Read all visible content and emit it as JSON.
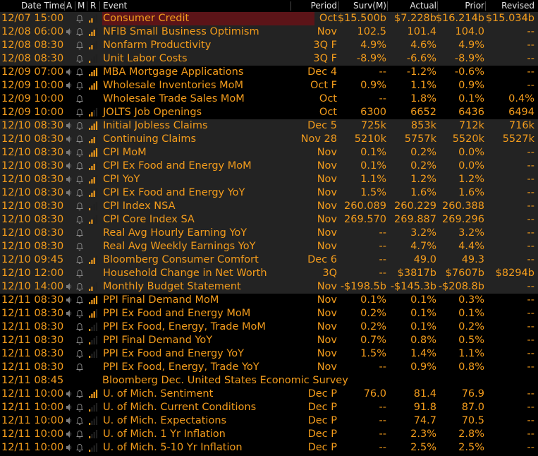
{
  "header": {
    "datetime": "Date Time",
    "a": "A",
    "m": "M",
    "r": "R",
    "event": "Event",
    "period": "Period",
    "surv": "Surv(M)",
    "actual": "Actual",
    "prior": "Prior",
    "revised": "Revised"
  },
  "rows": [
    {
      "dt": "12/07 15:00",
      "ev": "Consumer Credit",
      "per": "Oct",
      "surv": "$15.500b",
      "act": "$7.228b",
      "pri": "$16.214b",
      "rev": "$15.034b",
      "spk": false,
      "bell": true,
      "bars": 2,
      "hl": true
    },
    {
      "dt": "12/08 06:00",
      "ev": "NFIB Small Business Optimism",
      "per": "Nov",
      "surv": "102.5",
      "act": "101.4",
      "pri": "104.0",
      "rev": "--",
      "spk": true,
      "bell": true,
      "bars": 3,
      "shade": true
    },
    {
      "dt": "12/08 08:30",
      "ev": "Nonfarm Productivity",
      "per": "3Q F",
      "surv": "4.9%",
      "act": "4.6%",
      "pri": "4.9%",
      "rev": "--",
      "spk": false,
      "bell": true,
      "bars": 2,
      "shade": true
    },
    {
      "dt": "12/08 08:30",
      "ev": "Unit Labor Costs",
      "per": "3Q F",
      "surv": "-8.9%",
      "act": "-6.6%",
      "pri": "-8.9%",
      "rev": "--",
      "spk": false,
      "bell": true,
      "bars": 1,
      "shade": true
    },
    {
      "dt": "12/09 07:00",
      "ev": "MBA Mortgage Applications",
      "per": "Dec 4",
      "surv": "--",
      "act": "-1.2%",
      "pri": "-0.6%",
      "rev": "--",
      "spk": true,
      "bell": true,
      "bars": 4
    },
    {
      "dt": "12/09 10:00",
      "ev": "Wholesale Inventories MoM",
      "per": "Oct F",
      "surv": "0.9%",
      "act": "1.1%",
      "pri": "0.9%",
      "rev": "--",
      "spk": true,
      "bell": true,
      "bars": 4
    },
    {
      "dt": "12/09 10:00",
      "ev": "Wholesale Trade Sales MoM",
      "per": "Oct",
      "surv": "--",
      "act": "1.8%",
      "pri": "0.1%",
      "rev": "0.4%",
      "spk": false,
      "bell": true,
      "bars": 0
    },
    {
      "dt": "12/09 10:00",
      "ev": "JOLTS Job Openings",
      "per": "Oct",
      "surv": "6300",
      "act": "6652",
      "pri": "6436",
      "rev": "6494",
      "spk": false,
      "bell": true,
      "bars": 2
    },
    {
      "dt": "12/10 08:30",
      "ev": "Initial Jobless Claims",
      "per": "Dec 5",
      "surv": "725k",
      "act": "853k",
      "pri": "712k",
      "rev": "716k",
      "spk": true,
      "bell": true,
      "bars": 4,
      "shade": true
    },
    {
      "dt": "12/10 08:30",
      "ev": "Continuing Claims",
      "per": "Nov 28",
      "surv": "5210k",
      "act": "5757k",
      "pri": "5520k",
      "rev": "5527k",
      "spk": true,
      "bell": true,
      "bars": 3,
      "shade": true
    },
    {
      "dt": "12/10 08:30",
      "ev": "CPI MoM",
      "per": "Nov",
      "surv": "0.1%",
      "act": "0.2%",
      "pri": "0.0%",
      "rev": "--",
      "spk": true,
      "bell": true,
      "bars": 4,
      "shade": true
    },
    {
      "dt": "12/10 08:30",
      "ev": "CPI Ex Food and Energy MoM",
      "per": "Nov",
      "surv": "0.1%",
      "act": "0.2%",
      "pri": "0.0%",
      "rev": "--",
      "spk": true,
      "bell": true,
      "bars": 3,
      "shade": true
    },
    {
      "dt": "12/10 08:30",
      "ev": "CPI YoY",
      "per": "Nov",
      "surv": "1.1%",
      "act": "1.2%",
      "pri": "1.2%",
      "rev": "--",
      "spk": true,
      "bell": true,
      "bars": 3,
      "shade": true
    },
    {
      "dt": "12/10 08:30",
      "ev": "CPI Ex Food and Energy YoY",
      "per": "Nov",
      "surv": "1.5%",
      "act": "1.6%",
      "pri": "1.6%",
      "rev": "--",
      "spk": true,
      "bell": true,
      "bars": 3,
      "shade": true
    },
    {
      "dt": "12/10 08:30",
      "ev": "CPI Index NSA",
      "per": "Nov",
      "surv": "260.089",
      "act": "260.229",
      "pri": "260.388",
      "rev": "--",
      "spk": false,
      "bell": true,
      "bars": 1,
      "shade": true
    },
    {
      "dt": "12/10 08:30",
      "ev": "CPI Core Index SA",
      "per": "Nov",
      "surv": "269.570",
      "act": "269.887",
      "pri": "269.296",
      "rev": "--",
      "spk": false,
      "bell": true,
      "bars": 2,
      "shade": true
    },
    {
      "dt": "12/10 08:30",
      "ev": "Real Avg Hourly Earning YoY",
      "per": "Nov",
      "surv": "--",
      "act": "3.2%",
      "pri": "3.2%",
      "rev": "--",
      "spk": false,
      "bell": true,
      "bars": 0,
      "shade": true
    },
    {
      "dt": "12/10 08:30",
      "ev": "Real Avg Weekly Earnings YoY",
      "per": "Nov",
      "surv": "--",
      "act": "4.7%",
      "pri": "4.4%",
      "rev": "--",
      "spk": false,
      "bell": true,
      "bars": 0,
      "shade": true
    },
    {
      "dt": "12/10 09:45",
      "ev": "Bloomberg Consumer Comfort",
      "per": "Dec 6",
      "surv": "--",
      "act": "49.0",
      "pri": "49.3",
      "rev": "--",
      "spk": false,
      "bell": true,
      "bars": 3,
      "shade": true
    },
    {
      "dt": "12/10 12:00",
      "ev": "Household Change in Net Worth",
      "per": "3Q",
      "surv": "--",
      "act": "$3817b",
      "pri": "$7607b",
      "rev": "$8294b",
      "spk": false,
      "bell": true,
      "bars": 0,
      "shade": true
    },
    {
      "dt": "12/10 14:00",
      "ev": "Monthly Budget Statement",
      "per": "Nov",
      "surv": "-$198.5b",
      "act": "-$145.3b",
      "pri": "-$208.8b",
      "rev": "--",
      "spk": true,
      "bell": true,
      "bars": 2,
      "shade": true
    },
    {
      "dt": "12/11 08:30",
      "ev": "PPI Final Demand MoM",
      "per": "Nov",
      "surv": "0.1%",
      "act": "0.1%",
      "pri": "0.3%",
      "rev": "--",
      "spk": true,
      "bell": true,
      "bars": 4
    },
    {
      "dt": "12/11 08:30",
      "ev": "PPI Ex Food and Energy MoM",
      "per": "Nov",
      "surv": "0.2%",
      "act": "0.1%",
      "pri": "0.1%",
      "rev": "--",
      "spk": true,
      "bell": true,
      "bars": 3
    },
    {
      "dt": "12/11 08:30",
      "ev": "PPI Ex Food, Energy, Trade MoM",
      "per": "Nov",
      "surv": "0.2%",
      "act": "0.1%",
      "pri": "0.2%",
      "rev": "--",
      "spk": false,
      "bell": true,
      "bars": 1
    },
    {
      "dt": "12/11 08:30",
      "ev": "PPI Final Demand YoY",
      "per": "Nov",
      "surv": "0.7%",
      "act": "0.8%",
      "pri": "0.5%",
      "rev": "--",
      "spk": false,
      "bell": true,
      "bars": 1
    },
    {
      "dt": "12/11 08:30",
      "ev": "PPI Ex Food and Energy YoY",
      "per": "Nov",
      "surv": "1.5%",
      "act": "1.4%",
      "pri": "1.1%",
      "rev": "--",
      "spk": false,
      "bell": true,
      "bars": 1
    },
    {
      "dt": "12/11 08:30",
      "ev": "PPI Ex Food, Energy, Trade YoY",
      "per": "Nov",
      "surv": "--",
      "act": "0.9%",
      "pri": "0.8%",
      "rev": "--",
      "spk": false,
      "bell": true,
      "bars": 0
    },
    {
      "dt": "12/11 08:45",
      "ev": "Bloomberg Dec. United States Economic Survey",
      "per": "",
      "surv": "",
      "act": "",
      "pri": "",
      "rev": "",
      "spk": false,
      "bell": false,
      "bars": 0,
      "wide": true
    },
    {
      "dt": "12/11 10:00",
      "ev": "U. of Mich. Sentiment",
      "per": "Dec P",
      "surv": "76.0",
      "act": "81.4",
      "pri": "76.9",
      "rev": "--",
      "spk": true,
      "bell": true,
      "bars": 4
    },
    {
      "dt": "12/11 10:00",
      "ev": "U. of Mich. Current Conditions",
      "per": "Dec P",
      "surv": "--",
      "act": "91.8",
      "pri": "87.0",
      "rev": "--",
      "spk": true,
      "bell": true,
      "bars": 1
    },
    {
      "dt": "12/11 10:00",
      "ev": "U. of Mich. Expectations",
      "per": "Dec P",
      "surv": "--",
      "act": "74.7",
      "pri": "70.5",
      "rev": "--",
      "spk": true,
      "bell": true,
      "bars": 1
    },
    {
      "dt": "12/11 10:00",
      "ev": "U. of Mich. 1 Yr Inflation",
      "per": "Dec P",
      "surv": "--",
      "act": "2.3%",
      "pri": "2.8%",
      "rev": "--",
      "spk": true,
      "bell": true,
      "bars": 1
    },
    {
      "dt": "12/11 10:00",
      "ev": "U. of Mich. 5-10 Yr Inflation",
      "per": "Dec P",
      "surv": "--",
      "act": "2.5%",
      "pri": "2.5%",
      "rev": "--",
      "spk": true,
      "bell": true,
      "bars": 1
    }
  ]
}
